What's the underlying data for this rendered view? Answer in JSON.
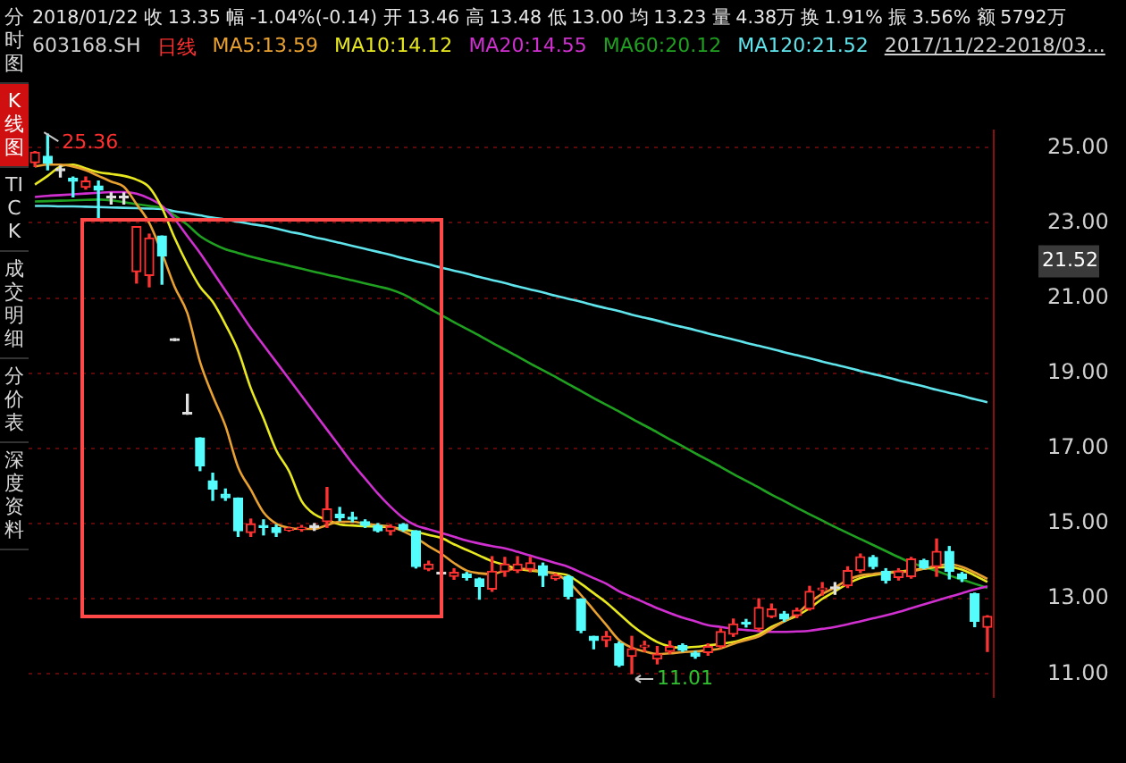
{
  "chart_data": {
    "type": "candlestick",
    "title": "2018/01/22 收 13.35 幅 -1.04%(-0.14) 开 13.46 高 13.48 低 13.00 均 13.23 量 4.38万 换 1.91% 振 3.56% 额 5792万",
    "categories": [
      null,
      null,
      null,
      null,
      null,
      null,
      null,
      null,
      null,
      null,
      null,
      null,
      null,
      null,
      null,
      null,
      null,
      null,
      null,
      null,
      null,
      null,
      null,
      null,
      null,
      null,
      null,
      null,
      null,
      null,
      null,
      null,
      null,
      null,
      null,
      null,
      null,
      null,
      null,
      null,
      null,
      null,
      null,
      null,
      null,
      null,
      null,
      null,
      null,
      null,
      null,
      null,
      null,
      null,
      null,
      null,
      null,
      null,
      null,
      null,
      null,
      null,
      null,
      null,
      null,
      null,
      null,
      null,
      null,
      null,
      null,
      null,
      null,
      null,
      null,
      null
    ],
    "ohlc": [
      [
        24.6,
        24.9,
        24.5,
        24.88
      ],
      [
        24.77,
        25.36,
        24.41,
        24.59
      ],
      [
        24.39,
        24.51,
        24.22,
        24.39
      ],
      [
        24.19,
        24.22,
        23.69,
        24.11
      ],
      [
        23.95,
        24.22,
        23.9,
        24.11
      ],
      [
        23.98,
        24.11,
        23.09,
        23.87
      ],
      [
        23.66,
        23.8,
        23.5,
        23.66
      ],
      [
        23.66,
        23.8,
        23.5,
        23.66
      ],
      [
        21.7,
        22.9,
        21.4,
        22.9
      ],
      [
        21.6,
        22.7,
        21.3,
        22.6
      ],
      [
        22.65,
        22.65,
        21.37,
        22.12
      ],
      [
        19.87,
        19.87,
        19.87,
        19.87
      ],
      [
        17.91,
        18.44,
        17.91,
        17.91
      ],
      [
        17.28,
        17.28,
        16.41,
        16.54
      ],
      [
        16.14,
        16.34,
        15.62,
        15.92
      ],
      [
        15.78,
        15.92,
        15.62,
        15.69
      ],
      [
        15.68,
        15.68,
        14.66,
        14.81
      ],
      [
        14.76,
        15.12,
        14.66,
        14.99
      ],
      [
        14.95,
        15.1,
        14.7,
        14.9
      ],
      [
        14.89,
        14.96,
        14.66,
        14.76
      ],
      [
        14.83,
        14.9,
        14.8,
        14.87
      ],
      [
        14.85,
        14.95,
        14.8,
        14.9
      ],
      [
        14.9,
        15.0,
        14.82,
        14.9
      ],
      [
        15.05,
        15.96,
        14.9,
        15.39
      ],
      [
        15.25,
        15.43,
        15.08,
        15.16
      ],
      [
        15.17,
        15.3,
        15.05,
        15.12
      ],
      [
        15.05,
        15.1,
        14.9,
        14.95
      ],
      [
        14.95,
        15.0,
        14.78,
        14.81
      ],
      [
        14.8,
        14.97,
        14.7,
        14.92
      ],
      [
        14.98,
        15.0,
        14.8,
        14.84
      ],
      [
        14.81,
        14.81,
        13.82,
        13.86
      ],
      [
        13.79,
        14.0,
        13.75,
        13.92
      ],
      [
        13.66,
        13.7,
        13.62,
        13.66
      ],
      [
        13.6,
        13.8,
        13.52,
        13.7
      ],
      [
        13.66,
        13.7,
        13.5,
        13.57
      ],
      [
        13.53,
        13.55,
        12.99,
        13.33
      ],
      [
        13.26,
        14.12,
        13.2,
        13.73
      ],
      [
        13.72,
        14.1,
        13.6,
        13.92
      ],
      [
        13.75,
        14.12,
        13.7,
        13.92
      ],
      [
        13.79,
        14.1,
        13.72,
        13.96
      ],
      [
        13.88,
        13.95,
        13.33,
        13.62
      ],
      [
        13.53,
        13.66,
        13.5,
        13.62
      ],
      [
        13.59,
        13.62,
        13.0,
        13.06
      ],
      [
        12.99,
        13.0,
        12.1,
        12.16
      ],
      [
        12.0,
        12.0,
        11.67,
        11.89
      ],
      [
        11.89,
        12.13,
        11.73,
        12.0
      ],
      [
        11.8,
        11.85,
        11.2,
        11.23
      ],
      [
        11.47,
        12.0,
        11.01,
        11.67
      ],
      [
        11.72,
        11.87,
        11.6,
        11.76
      ],
      [
        11.4,
        11.73,
        11.27,
        11.53
      ],
      [
        11.6,
        11.87,
        11.55,
        11.73
      ],
      [
        11.76,
        11.8,
        11.6,
        11.63
      ],
      [
        11.56,
        11.6,
        11.42,
        11.47
      ],
      [
        11.57,
        11.8,
        11.5,
        11.73
      ],
      [
        11.73,
        12.2,
        11.7,
        12.13
      ],
      [
        12.06,
        12.46,
        12.0,
        12.33
      ],
      [
        12.35,
        12.45,
        12.25,
        12.33
      ],
      [
        12.2,
        13.0,
        12.15,
        12.77
      ],
      [
        12.53,
        12.86,
        12.5,
        12.73
      ],
      [
        12.6,
        12.66,
        12.4,
        12.46
      ],
      [
        12.56,
        12.75,
        12.5,
        12.69
      ],
      [
        12.73,
        13.33,
        12.7,
        13.2
      ],
      [
        13.24,
        13.43,
        13.1,
        13.27
      ],
      [
        13.27,
        13.43,
        13.12,
        13.27
      ],
      [
        13.35,
        13.85,
        13.3,
        13.75
      ],
      [
        13.75,
        14.19,
        13.7,
        14.12
      ],
      [
        14.1,
        14.15,
        13.8,
        13.86
      ],
      [
        13.73,
        13.8,
        13.42,
        13.49
      ],
      [
        13.57,
        13.8,
        13.5,
        13.73
      ],
      [
        13.59,
        14.1,
        13.55,
        14.06
      ],
      [
        14.02,
        14.05,
        13.8,
        13.83
      ],
      [
        13.86,
        14.59,
        13.6,
        14.26
      ],
      [
        14.26,
        14.39,
        13.53,
        13.73
      ],
      [
        13.66,
        13.7,
        13.46,
        13.53
      ],
      [
        13.13,
        13.15,
        12.26,
        12.4
      ],
      [
        12.24,
        12.55,
        11.6,
        12.53
      ]
    ],
    "series": [
      {
        "name": "MA5:13.59",
        "type": "line",
        "color": "#e8a030",
        "values": [
          24.5,
          24.55,
          24.55,
          24.5,
          24.4,
          24.25,
          24.1,
          23.96,
          23.5,
          23.0,
          22.2,
          21.3,
          20.6,
          19.3,
          18.4,
          17.6,
          16.5,
          15.9,
          15.3,
          15.0,
          14.89,
          14.86,
          14.86,
          14.96,
          15.05,
          15.05,
          15.0,
          14.96,
          14.92,
          14.8,
          14.62,
          14.4,
          14.2,
          13.95,
          13.75,
          13.68,
          13.66,
          13.75,
          13.8,
          13.78,
          13.72,
          13.66,
          13.45,
          13.1,
          12.7,
          12.3,
          11.9,
          11.7,
          11.6,
          11.53,
          11.55,
          11.58,
          11.6,
          11.63,
          11.68,
          11.8,
          11.9,
          12.0,
          12.2,
          12.4,
          12.6,
          12.9,
          13.13,
          13.3,
          13.5,
          13.62,
          13.66,
          13.7,
          13.72,
          13.73,
          13.8,
          13.88,
          13.92,
          13.85,
          13.7,
          13.53
        ]
      },
      {
        "name": "MA10:14.12",
        "type": "line",
        "color": "#e8e820",
        "values": [
          24.02,
          24.25,
          24.5,
          24.55,
          24.45,
          24.35,
          24.3,
          24.25,
          24.15,
          23.95,
          23.4,
          22.6,
          21.9,
          21.3,
          20.9,
          20.3,
          19.6,
          18.6,
          17.8,
          16.95,
          16.4,
          15.6,
          15.25,
          15.1,
          14.98,
          14.95,
          14.93,
          14.92,
          14.9,
          14.85,
          14.78,
          14.7,
          14.62,
          14.45,
          14.3,
          14.15,
          14.0,
          13.9,
          13.8,
          13.75,
          13.72,
          13.68,
          13.62,
          13.4,
          13.15,
          12.9,
          12.6,
          12.3,
          12.05,
          11.85,
          11.73,
          11.7,
          11.72,
          11.76,
          11.8,
          11.85,
          11.95,
          12.05,
          12.25,
          12.4,
          12.55,
          12.75,
          13.0,
          13.2,
          13.4,
          13.55,
          13.63,
          13.68,
          13.72,
          13.76,
          13.8,
          13.84,
          13.84,
          13.78,
          13.62,
          13.45
        ]
      },
      {
        "name": "MA20:14.55",
        "type": "line",
        "color": "#d030d0",
        "values": [
          23.69,
          23.72,
          23.74,
          23.76,
          23.78,
          23.8,
          23.82,
          23.82,
          23.78,
          23.65,
          23.45,
          23.1,
          22.65,
          22.2,
          21.7,
          21.2,
          20.7,
          20.2,
          19.75,
          19.3,
          18.85,
          18.4,
          17.95,
          17.5,
          17.05,
          16.6,
          16.2,
          15.8,
          15.45,
          15.15,
          14.95,
          14.85,
          14.75,
          14.65,
          14.55,
          14.47,
          14.4,
          14.34,
          14.25,
          14.15,
          14.05,
          13.95,
          13.85,
          13.7,
          13.55,
          13.4,
          13.2,
          13.05,
          12.9,
          12.75,
          12.62,
          12.5,
          12.4,
          12.3,
          12.25,
          12.2,
          12.17,
          12.14,
          12.12,
          12.12,
          12.13,
          12.15,
          12.2,
          12.25,
          12.32,
          12.4,
          12.48,
          12.56,
          12.65,
          12.75,
          12.85,
          12.95,
          13.05,
          13.15,
          13.25,
          13.33
        ]
      },
      {
        "name": "MA60:20.12",
        "type": "line",
        "color": "#20a020",
        "values": [
          23.57,
          23.58,
          23.59,
          23.6,
          23.61,
          23.62,
          23.6,
          23.55,
          23.5,
          23.45,
          23.4,
          23.2,
          22.95,
          22.65,
          22.45,
          22.3,
          22.2,
          22.1,
          22.02,
          21.94,
          21.86,
          21.78,
          21.7,
          21.62,
          21.55,
          21.47,
          21.39,
          21.31,
          21.23,
          21.1,
          20.92,
          20.73,
          20.55,
          20.36,
          20.18,
          20.0,
          19.81,
          19.63,
          19.45,
          19.26,
          19.08,
          18.9,
          18.71,
          18.53,
          18.34,
          18.16,
          17.98,
          17.79,
          17.61,
          17.43,
          17.24,
          17.06,
          16.87,
          16.69,
          16.51,
          16.32,
          16.14,
          15.96,
          15.77,
          15.6,
          15.42,
          15.25,
          15.08,
          14.91,
          14.75,
          14.59,
          14.43,
          14.27,
          14.11,
          13.96,
          13.85,
          13.74,
          13.62,
          13.51,
          13.4,
          13.29
        ]
      },
      {
        "name": "MA120:21.52",
        "type": "line",
        "color": "#60e4ec",
        "values": [
          23.45,
          23.45,
          23.44,
          23.44,
          23.43,
          23.42,
          23.41,
          23.4,
          23.39,
          23.38,
          23.37,
          23.31,
          23.26,
          23.2,
          23.14,
          23.09,
          23.03,
          22.97,
          22.92,
          22.85,
          22.77,
          22.7,
          22.62,
          22.55,
          22.47,
          22.39,
          22.31,
          22.23,
          22.15,
          22.06,
          21.98,
          21.9,
          21.81,
          21.73,
          21.65,
          21.56,
          21.48,
          21.4,
          21.31,
          21.23,
          21.15,
          21.06,
          20.98,
          20.9,
          20.81,
          20.73,
          20.65,
          20.56,
          20.48,
          20.4,
          20.31,
          20.23,
          20.15,
          20.06,
          19.98,
          19.9,
          19.81,
          19.73,
          19.65,
          19.56,
          19.48,
          19.4,
          19.31,
          19.23,
          19.15,
          19.06,
          18.98,
          18.9,
          18.81,
          18.73,
          18.65,
          18.56,
          18.48,
          18.4,
          18.31,
          18.23
        ]
      }
    ],
    "ylim": [
      10.4,
      25.45
    ],
    "yticks": [
      {
        "value": 25,
        "label": "25.00"
      },
      {
        "value": 23,
        "label": "23.00"
      },
      {
        "value": 21,
        "label": "21.00"
      },
      {
        "value": 19,
        "label": "19.00"
      },
      {
        "value": 17,
        "label": "17.00"
      },
      {
        "value": 15,
        "label": "15.00"
      },
      {
        "value": 13,
        "label": "13.00"
      },
      {
        "value": 11,
        "label": "11.00"
      }
    ],
    "annotations": [
      "603168.SH",
      "日线",
      "2017/11/22-2018/03...",
      "分时图",
      "K线图",
      "TICK",
      "成交明细",
      "分价表",
      "深度资料",
      "25.36",
      "11.01",
      "21.52"
    ],
    "grid": "y",
    "legend": "top",
    "marker": "none",
    "line_style": "solid"
  }
}
